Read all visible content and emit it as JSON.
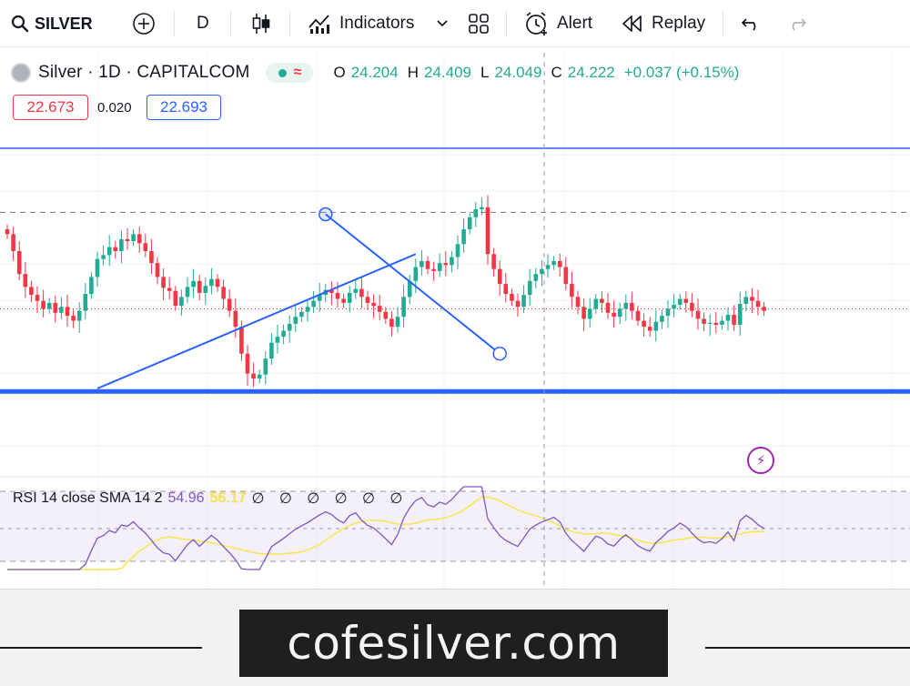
{
  "toolbar": {
    "symbol": "SILVER",
    "interval": "D",
    "indicators_label": "Indicators",
    "alert_label": "Alert",
    "replay_label": "Replay"
  },
  "legend": {
    "title": "Silver · 1D · CAPITALCOM",
    "open_key": "O",
    "open": "24.204",
    "high_key": "H",
    "high": "24.409",
    "low_key": "L",
    "low": "24.049",
    "close_key": "C",
    "close": "24.222",
    "change": "+0.037 (+0.15%)"
  },
  "quote": {
    "bid": "22.673",
    "spread": "0.020",
    "ask": "22.693"
  },
  "rsi": {
    "name": "RSI 14 close SMA 14 2",
    "value": "54.96",
    "sma": "56.17",
    "na": "∅ ∅ ∅ ∅ ∅ ∅"
  },
  "footer": {
    "brand": "cofesilver.com"
  },
  "colors": {
    "up": "#22ab94",
    "down": "#f23645",
    "drawing": "#2962ff",
    "rsi": "#7e57c2",
    "rsi_sma": "#f9e547"
  },
  "chart_data": {
    "type": "candlestick",
    "symbol": "Silver",
    "interval": "1D",
    "exchange": "CAPITALCOM",
    "closes": [
      23.45,
      23.28,
      23.05,
      22.92,
      22.84,
      22.78,
      22.7,
      22.76,
      22.66,
      22.72,
      22.63,
      22.58,
      22.68,
      22.85,
      23.02,
      23.2,
      23.24,
      23.32,
      23.28,
      23.4,
      23.38,
      23.45,
      23.36,
      23.28,
      23.16,
      23.02,
      22.91,
      22.88,
      22.73,
      22.82,
      22.92,
      22.98,
      22.86,
      22.93,
      23.0,
      22.92,
      22.8,
      22.68,
      22.52,
      22.25,
      22.05,
      22.0,
      22.04,
      22.2,
      22.36,
      22.42,
      22.48,
      22.55,
      22.62,
      22.67,
      22.72,
      22.78,
      22.84,
      22.89,
      22.86,
      22.8,
      22.76,
      22.86,
      22.9,
      22.82,
      22.76,
      22.73,
      22.67,
      22.6,
      22.52,
      22.62,
      22.82,
      22.98,
      23.12,
      23.18,
      23.1,
      23.08,
      23.16,
      23.14,
      23.22,
      23.35,
      23.5,
      23.62,
      23.7,
      23.72,
      23.25,
      23.1,
      22.95,
      22.85,
      22.78,
      22.72,
      22.84,
      22.98,
      23.05,
      23.1,
      23.14,
      23.18,
      23.12,
      22.95,
      22.82,
      22.72,
      22.6,
      22.7,
      22.8,
      22.76,
      22.66,
      22.62,
      22.7,
      22.76,
      22.68,
      22.58,
      22.52,
      22.48,
      22.57,
      22.63,
      22.7,
      22.74,
      22.8,
      22.76,
      22.68,
      22.6,
      22.55,
      22.56,
      22.54,
      22.58,
      22.64,
      22.54,
      22.75,
      22.82,
      22.78,
      22.72,
      22.68
    ],
    "price_range": [
      21.05,
      24.34
    ],
    "resistance_level": 23.67,
    "current_level": 22.7,
    "support_level": 21.87,
    "trendlines": [
      {
        "name": "rising",
        "from": [
          15,
          21.9
        ],
        "to": [
          68,
          23.25
        ]
      },
      {
        "name": "falling",
        "from": [
          53,
          23.65
        ],
        "to": [
          82,
          22.25
        ]
      }
    ],
    "rsi_value": 54.96,
    "rsi_sma_value": 56.17
  }
}
